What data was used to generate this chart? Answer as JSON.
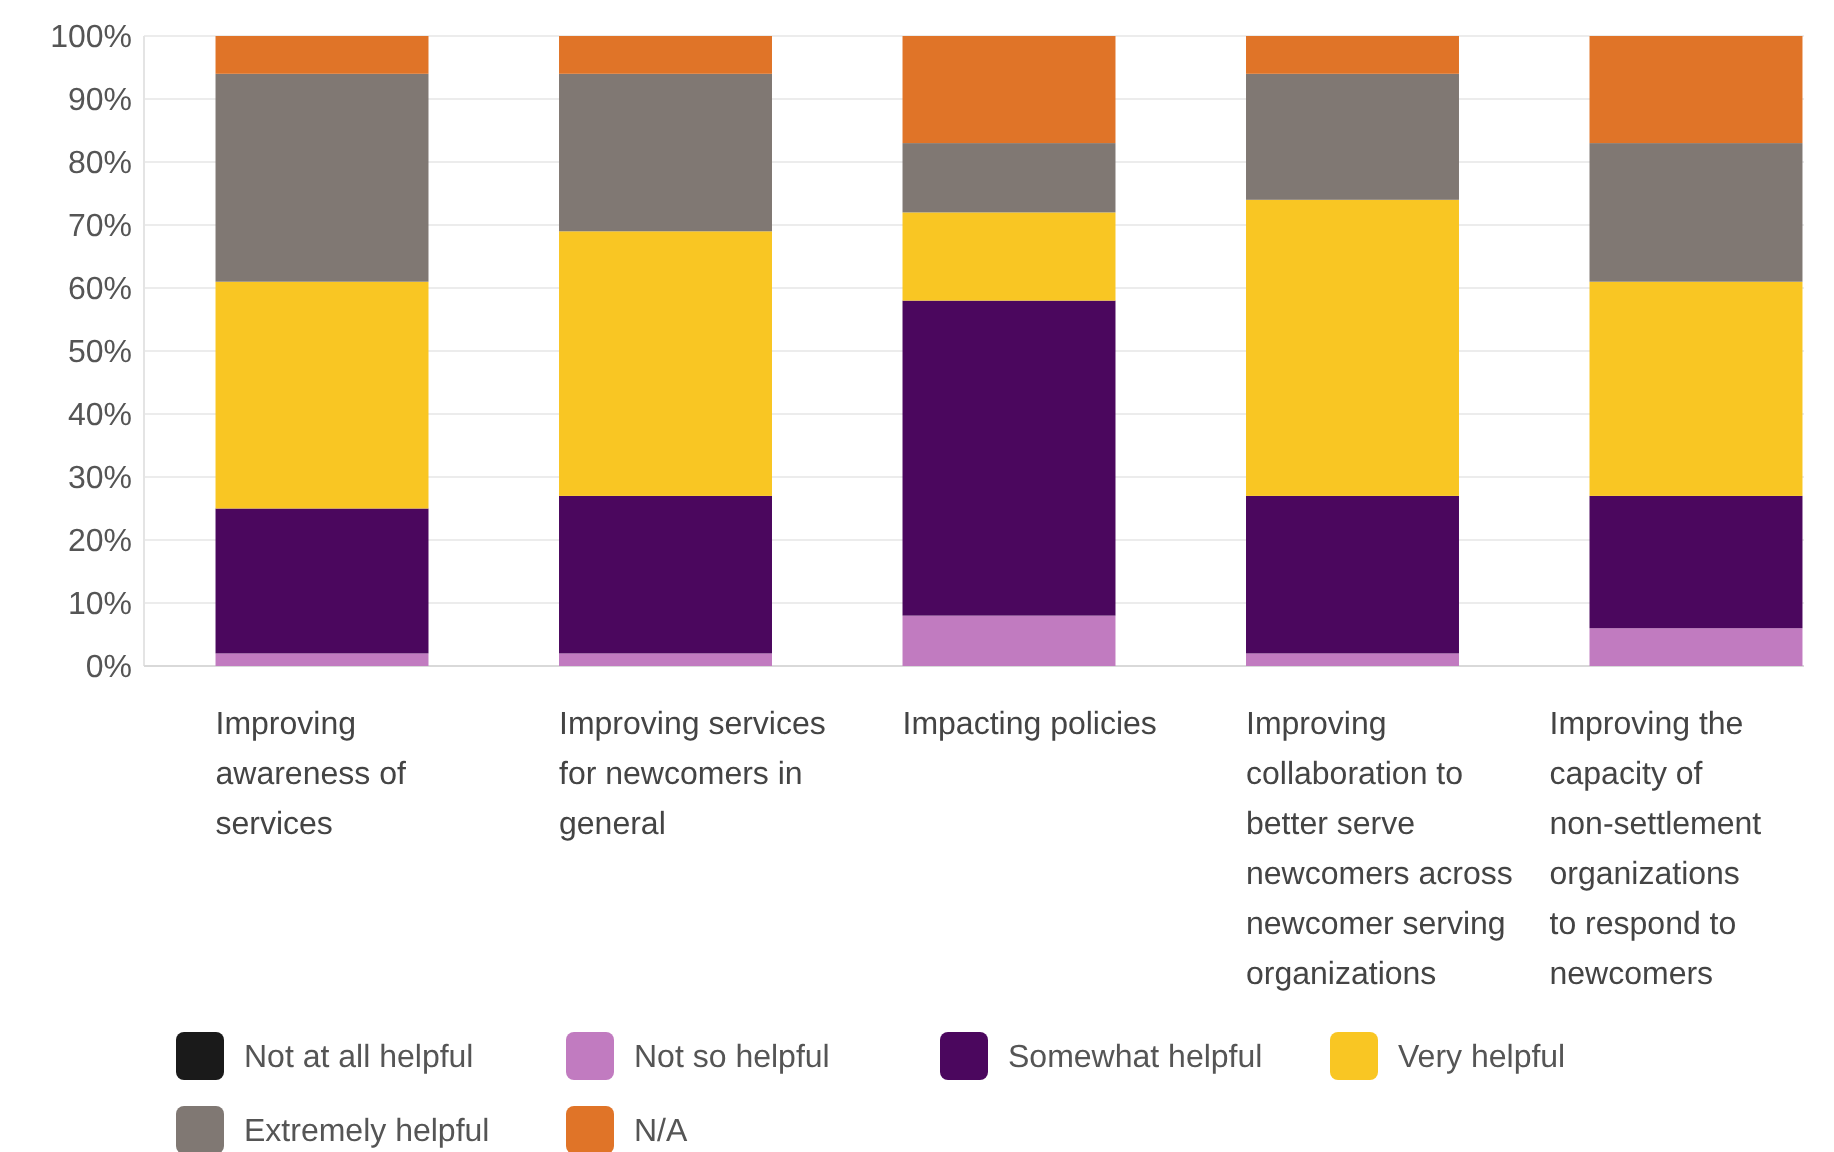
{
  "chart_data": {
    "type": "bar",
    "stacked": true,
    "categories": [
      "Improving awareness of services",
      "Improving services for newcomers in general",
      "Impacting policies",
      "Improving collaboration to better serve newcomers across newcomer serving organizations",
      "Improving the capacity of non-settlement organizations to respond to newcomers"
    ],
    "series": [
      {
        "name": "Not at all helpful",
        "color": "#1a1a1a",
        "values": [
          0,
          0,
          0,
          0,
          0
        ]
      },
      {
        "name": "Not so helpful",
        "color": "#c17bc0",
        "values": [
          2,
          2,
          8,
          2,
          6
        ]
      },
      {
        "name": "Somewhat helpful",
        "color": "#4b075e",
        "values": [
          23,
          25,
          50,
          25,
          21
        ]
      },
      {
        "name": "Very helpful",
        "color": "#f9c623",
        "values": [
          36,
          42,
          14,
          47,
          34
        ]
      },
      {
        "name": "Extremely helpful",
        "color": "#807873",
        "values": [
          33,
          25,
          11,
          20,
          22
        ]
      },
      {
        "name": "N/A",
        "color": "#e07428",
        "values": [
          6,
          6,
          17,
          6,
          17
        ]
      }
    ],
    "ylim": [
      0,
      100
    ],
    "yticks": [
      {
        "value": 0,
        "label": "0%"
      },
      {
        "value": 10,
        "label": "10%"
      },
      {
        "value": 20,
        "label": "20%"
      },
      {
        "value": 30,
        "label": "30%"
      },
      {
        "value": 40,
        "label": "40%"
      },
      {
        "value": 50,
        "label": "50%"
      },
      {
        "value": 60,
        "label": "60%"
      },
      {
        "value": 70,
        "label": "70%"
      },
      {
        "value": 80,
        "label": "80%"
      },
      {
        "value": 90,
        "label": "90%"
      },
      {
        "value": 100,
        "label": "100%"
      }
    ],
    "grid": "y",
    "legend": "bottom"
  }
}
